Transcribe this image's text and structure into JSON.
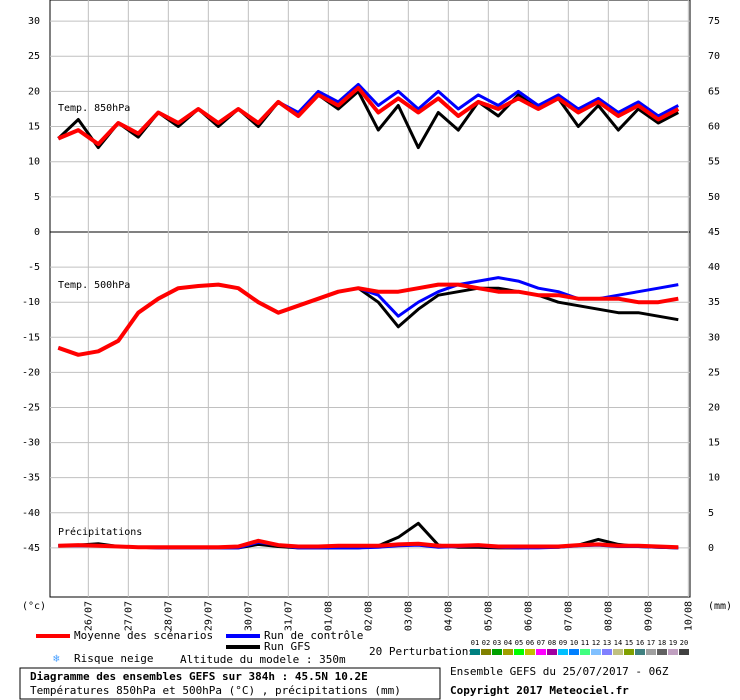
{
  "chart_data": [
    {
      "type": "line",
      "title": "Temp. 850hPa",
      "x": [
        0,
        12,
        24,
        36,
        48,
        60,
        72,
        84,
        96,
        108,
        120,
        132,
        144,
        156,
        168,
        180,
        192,
        204,
        216,
        228,
        240,
        252,
        264,
        276,
        288,
        300,
        312,
        324,
        336,
        348,
        360,
        372
      ],
      "xlim": [
        -5,
        379
      ],
      "ylim": [
        0,
        33
      ],
      "yticks": [
        5,
        10,
        15,
        20,
        25,
        30
      ],
      "y2lim": [
        45,
        78
      ],
      "y2ticks": [
        50,
        55,
        60,
        65,
        70,
        75
      ],
      "grid": true,
      "series": [
        {
          "name": "Run GFS",
          "color": "#000000",
          "values": [
            13.3,
            16,
            12,
            15.5,
            13.5,
            17,
            15,
            17.5,
            15,
            17.5,
            15,
            18.5,
            16.5,
            19.5,
            17.5,
            20,
            14.5,
            18,
            12,
            17,
            14.5,
            18.5,
            16.5,
            19.5,
            17.5,
            19,
            15,
            18,
            14.5,
            17.5,
            15.5,
            17
          ]
        },
        {
          "name": "Run de contrôle",
          "color": "#0000ff",
          "values": [
            13.3,
            14.5,
            12.5,
            15.5,
            14,
            17,
            15.5,
            17.5,
            15.5,
            17.5,
            15.5,
            18.5,
            17,
            20,
            18.5,
            21,
            18,
            20,
            17.5,
            20,
            17.5,
            19.5,
            18,
            20,
            18,
            19.5,
            17.5,
            19,
            17,
            18.5,
            16.5,
            18
          ]
        },
        {
          "name": "Moyenne des scénarios",
          "color": "#ff0000",
          "values": [
            13.3,
            14.5,
            12.5,
            15.5,
            14,
            17,
            15.5,
            17.5,
            15.5,
            17.5,
            15.5,
            18.5,
            16.5,
            19.5,
            18,
            20.5,
            17,
            19,
            17,
            19,
            16.5,
            18.5,
            17.5,
            19,
            17.5,
            19,
            17,
            18.5,
            16.5,
            18,
            16,
            17.5
          ]
        }
      ]
    },
    {
      "type": "line",
      "title": "Temp. 500hPa",
      "annotation": "Précipitations",
      "x": [
        0,
        12,
        24,
        36,
        48,
        60,
        72,
        84,
        96,
        108,
        120,
        132,
        144,
        156,
        168,
        180,
        192,
        204,
        216,
        228,
        240,
        252,
        264,
        276,
        288,
        300,
        312,
        324,
        336,
        348,
        360,
        372
      ],
      "xlim": [
        -5,
        379
      ],
      "ylim": [
        -52,
        0
      ],
      "yticks": [
        0,
        -5,
        -10,
        -15,
        -20,
        -25,
        -30,
        -35,
        -40,
        -45
      ],
      "y2lim": [
        -7,
        45
      ],
      "y2ticks": [
        0,
        5,
        10,
        15,
        20,
        25,
        30,
        35,
        40,
        45
      ],
      "grid": true,
      "xticks": [
        {
          "value": 18,
          "label": "26/07"
        },
        {
          "value": 42,
          "label": "27/07"
        },
        {
          "value": 66,
          "label": "28/07"
        },
        {
          "value": 90,
          "label": "29/07"
        },
        {
          "value": 114,
          "label": "30/07"
        },
        {
          "value": 138,
          "label": "31/07"
        },
        {
          "value": 162,
          "label": "01/08"
        },
        {
          "value": 186,
          "label": "02/08"
        },
        {
          "value": 210,
          "label": "03/08"
        },
        {
          "value": 234,
          "label": "04/08"
        },
        {
          "value": 258,
          "label": "05/08"
        },
        {
          "value": 282,
          "label": "06/08"
        },
        {
          "value": 306,
          "label": "07/08"
        },
        {
          "value": 330,
          "label": "08/08"
        },
        {
          "value": 354,
          "label": "09/08"
        },
        {
          "value": 378,
          "label": "10/08"
        }
      ],
      "series": [
        {
          "name": "Run GFS",
          "color": "#000000",
          "values": [
            -16.5,
            -17.5,
            -17,
            -15.5,
            -11.5,
            -9.5,
            -8,
            -7.7,
            -7.5,
            -8,
            -10,
            -11.5,
            -10.5,
            -9.5,
            -8.5,
            -8,
            -10,
            -13.5,
            -11,
            -9,
            -8.5,
            -8,
            -8,
            -8.5,
            -9,
            -10,
            -10.5,
            -11,
            -11.5,
            -11.5,
            -12,
            -12.5
          ]
        },
        {
          "name": "Run de contrôle",
          "color": "#0000ff",
          "values": [
            -16.5,
            -17.5,
            -17,
            -15.5,
            -11.5,
            -9.5,
            -8,
            -7.7,
            -7.5,
            -8,
            -10,
            -11.5,
            -10.5,
            -9.5,
            -8.5,
            -8,
            -9,
            -12,
            -10,
            -8.5,
            -7.5,
            -7,
            -6.5,
            -7,
            -8,
            -8.5,
            -9.5,
            -9.5,
            -9,
            -8.5,
            -8,
            -7.5
          ]
        },
        {
          "name": "Moyenne des scénarios",
          "color": "#ff0000",
          "values": [
            -16.5,
            -17.5,
            -17,
            -15.5,
            -11.5,
            -9.5,
            -8,
            -7.7,
            -7.5,
            -8,
            -10,
            -11.5,
            -10.5,
            -9.5,
            -8.5,
            -8,
            -8.5,
            -8.5,
            -8,
            -7.5,
            -7.5,
            -8,
            -8.5,
            -8.5,
            -9,
            -9,
            -9.5,
            -9.5,
            -9.5,
            -10,
            -10,
            -9.5
          ]
        },
        {
          "name": "Run GFS",
          "color": "#000000",
          "axis": "y2",
          "values": [
            0.3,
            0.4,
            0.6,
            0.2,
            0.1,
            0,
            0,
            0,
            0,
            0,
            0.5,
            0.2,
            0,
            0,
            0,
            0,
            0.3,
            1.5,
            3.5,
            0.4,
            0.1,
            0.1,
            0,
            0,
            0.1,
            0.1,
            0.4,
            1.2,
            0.5,
            0.2,
            0.1,
            0
          ]
        },
        {
          "name": "Run de contrôle",
          "color": "#0000ff",
          "axis": "y2",
          "values": [
            0.3,
            0.3,
            0.3,
            0.2,
            0.1,
            0,
            0,
            0,
            0,
            0,
            0.8,
            0.4,
            0,
            0,
            0,
            0,
            0.1,
            0.3,
            0.4,
            0.1,
            0.2,
            0.3,
            0.1,
            0,
            0,
            0.1,
            0.3,
            0.4,
            0.2,
            0.2,
            0.1,
            0
          ]
        },
        {
          "name": "Moyenne des scénarios",
          "color": "#ff0000",
          "axis": "y2",
          "values": [
            0.3,
            0.4,
            0.3,
            0.2,
            0.1,
            0.1,
            0.1,
            0.1,
            0.1,
            0.2,
            1,
            0.4,
            0.2,
            0.2,
            0.3,
            0.3,
            0.3,
            0.5,
            0.6,
            0.3,
            0.3,
            0.4,
            0.2,
            0.2,
            0.2,
            0.2,
            0.4,
            0.5,
            0.3,
            0.3,
            0.2,
            0.1
          ]
        }
      ]
    }
  ],
  "axis_units": {
    "left": "(°c)",
    "right": "(mm)"
  },
  "legend": {
    "snow": "Risque neige",
    "altitude": "Altitude du modele : 350m",
    "perturbations": "20 Perturbations",
    "perturbation_ids": [
      "01",
      "02",
      "03",
      "04",
      "05",
      "06",
      "07",
      "08",
      "09",
      "10",
      "11",
      "12",
      "13",
      "14",
      "15",
      "16",
      "17",
      "18",
      "19",
      "20"
    ],
    "perturbation_colors": [
      "#008080",
      "#808000",
      "#00a000",
      "#a0a000",
      "#00ff00",
      "#c0c000",
      "#ff00ff",
      "#a000a0",
      "#00c0ff",
      "#0080ff",
      "#40ff80",
      "#80c0ff",
      "#8080ff",
      "#c0c080",
      "#80a000",
      "#408080",
      "#a0a0a0",
      "#606060",
      "#c0a0c0",
      "#404040"
    ]
  },
  "footer": {
    "title": "Diagramme des ensembles GEFS sur 384h : 45.5N 10.2E",
    "subtitle": "Températures 850hPa et 500hPa (°C) , précipitations (mm)",
    "run": "Ensemble GEFS du 25/07/2017 - 06Z",
    "copyright": "Copyright 2017 Meteociel.fr"
  }
}
